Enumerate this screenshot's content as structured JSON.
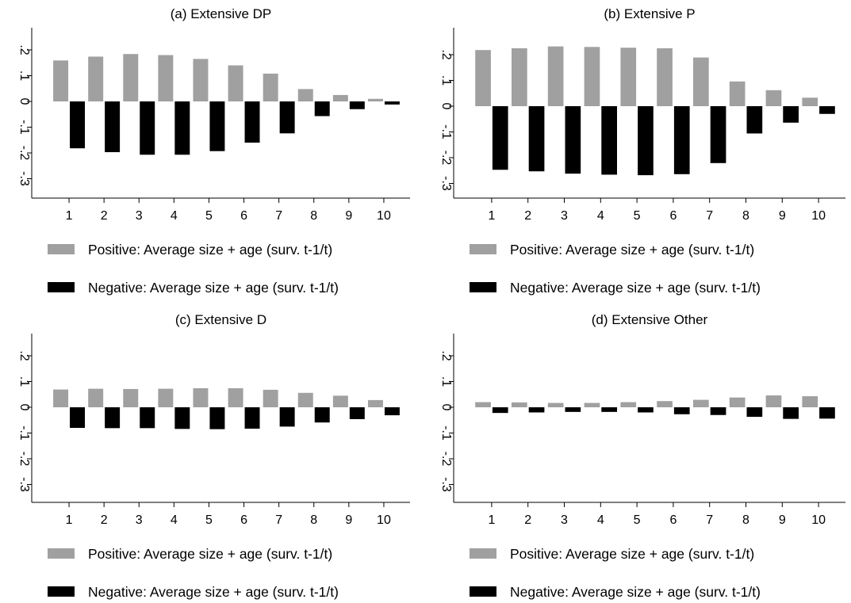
{
  "chart_data": [
    {
      "type": "bar",
      "title": "(a) Extensive DP",
      "categories": [
        "1",
        "2",
        "3",
        "4",
        "5",
        "6",
        "7",
        "8",
        "9",
        "10"
      ],
      "yticks": [
        ".2",
        ".1",
        "0",
        "-.1",
        "-.2",
        "-.3"
      ],
      "ylim": [
        -0.38,
        0.26
      ],
      "grid": false,
      "legend_position": "bottom",
      "series": [
        {
          "name": "Positive: Average size + age (surv. t-1/t)",
          "color": "#a0a0a0",
          "values": [
            0.159,
            0.174,
            0.184,
            0.18,
            0.165,
            0.14,
            0.108,
            0.048,
            0.025,
            0.01
          ]
        },
        {
          "name": "Negative: Average size + age (surv. t-1/t)",
          "color": "#000000",
          "values": [
            -0.182,
            -0.197,
            -0.207,
            -0.207,
            -0.193,
            -0.16,
            -0.124,
            -0.057,
            -0.03,
            -0.012
          ]
        }
      ]
    },
    {
      "type": "bar",
      "title": "(b) Extensive P",
      "categories": [
        "1",
        "2",
        "3",
        "4",
        "5",
        "6",
        "7",
        "8",
        "9",
        "10"
      ],
      "yticks": [
        ".2",
        ".1",
        "0",
        "-.1",
        "-.2",
        "-.3"
      ],
      "ylim": [
        -0.38,
        0.26
      ],
      "grid": false,
      "legend_position": "bottom",
      "series": [
        {
          "name": "Positive: Average size + age (surv. t-1/t)",
          "color": "#a0a0a0",
          "values": [
            0.218,
            0.225,
            0.232,
            0.23,
            0.227,
            0.225,
            0.189,
            0.096,
            0.062,
            0.033
          ]
        },
        {
          "name": "Negative: Average size + age (surv. t-1/t)",
          "color": "#000000",
          "values": [
            -0.247,
            -0.253,
            -0.262,
            -0.266,
            -0.268,
            -0.264,
            -0.221,
            -0.106,
            -0.064,
            -0.03
          ]
        }
      ]
    },
    {
      "type": "bar",
      "title": "(c) Extensive D",
      "categories": [
        "1",
        "2",
        "3",
        "4",
        "5",
        "6",
        "7",
        "8",
        "9",
        "10"
      ],
      "yticks": [
        ".2",
        ".1",
        "0",
        "-.1",
        "-.2",
        "-.3"
      ],
      "ylim": [
        -0.38,
        0.26
      ],
      "grid": false,
      "legend_position": "bottom",
      "series": [
        {
          "name": "Positive: Average size + age (surv. t-1/t)",
          "color": "#a0a0a0",
          "values": [
            0.069,
            0.072,
            0.071,
            0.072,
            0.074,
            0.074,
            0.068,
            0.056,
            0.045,
            0.028
          ]
        },
        {
          "name": "Negative: Average size + age (surv. t-1/t)",
          "color": "#000000",
          "values": [
            -0.08,
            -0.081,
            -0.081,
            -0.084,
            -0.085,
            -0.083,
            -0.075,
            -0.059,
            -0.046,
            -0.031
          ]
        }
      ]
    },
    {
      "type": "bar",
      "title": "(d) Extensive Other",
      "categories": [
        "1",
        "2",
        "3",
        "4",
        "5",
        "6",
        "7",
        "8",
        "9",
        "10"
      ],
      "yticks": [
        ".2",
        ".1",
        "0",
        "-.1",
        "-.2",
        "-.3"
      ],
      "ylim": [
        -0.38,
        0.26
      ],
      "grid": false,
      "legend_position": "bottom",
      "series": [
        {
          "name": "Positive: Average size + age (surv. t-1/t)",
          "color": "#a0a0a0",
          "values": [
            0.02,
            0.019,
            0.017,
            0.017,
            0.02,
            0.024,
            0.029,
            0.038,
            0.046,
            0.043
          ]
        },
        {
          "name": "Negative: Average size + age (surv. t-1/t)",
          "color": "#000000",
          "values": [
            -0.022,
            -0.02,
            -0.018,
            -0.018,
            -0.02,
            -0.027,
            -0.03,
            -0.037,
            -0.045,
            -0.044
          ]
        }
      ]
    }
  ]
}
